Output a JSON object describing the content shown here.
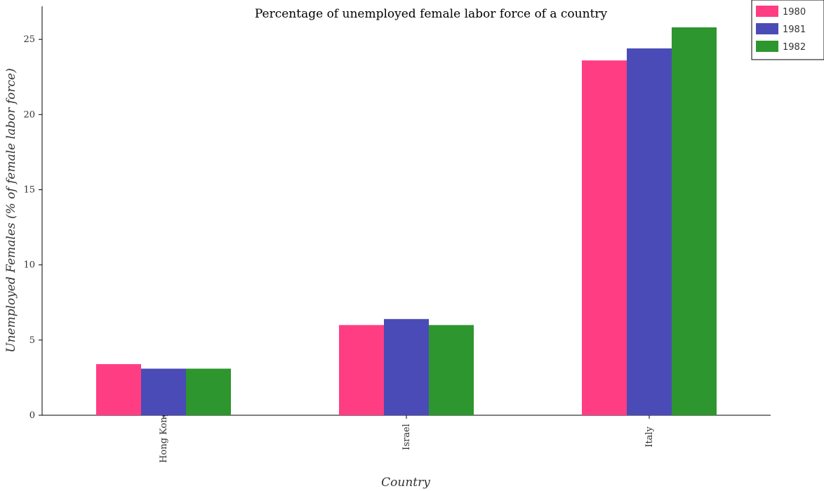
{
  "chart_data": {
    "type": "bar",
    "title": "Percentage of unemployed female labor force of a country",
    "xlabel": "Country",
    "ylabel": "Unemployed Females (% of female labor force)",
    "categories": [
      "Hong Kong",
      "Israel",
      "Italy"
    ],
    "series": [
      {
        "name": "1980",
        "color": "#ff3d83",
        "values": [
          3.4,
          6.0,
          23.6
        ]
      },
      {
        "name": "1981",
        "color": "#4b4bb8",
        "values": [
          3.1,
          6.4,
          24.4
        ]
      },
      {
        "name": "1982",
        "color": "#2e962e",
        "values": [
          3.1,
          6.0,
          25.8
        ]
      }
    ],
    "ylim": [
      0,
      27.2
    ],
    "yticks": [
      0,
      5,
      10,
      15,
      20,
      25
    ],
    "grid": false,
    "legend_position": "top-right"
  }
}
